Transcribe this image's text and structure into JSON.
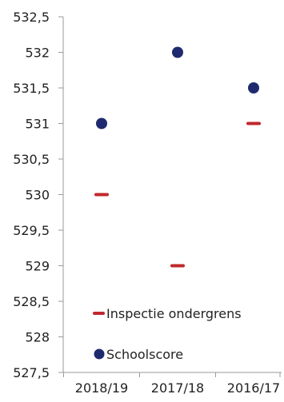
{
  "chart_data": {
    "type": "scatter",
    "title": "",
    "xlabel": "",
    "ylabel": "",
    "categories": [
      "2018/19",
      "2017/18",
      "2016/17"
    ],
    "y_tick_labels": [
      "532,5",
      "532",
      "531,5",
      "531",
      "530,5",
      "530",
      "529,5",
      "529",
      "528,5",
      "528",
      "527,5"
    ],
    "y_ticks": [
      532.5,
      532,
      531.5,
      531,
      530.5,
      530,
      529.5,
      529,
      528.5,
      528,
      527.5
    ],
    "ylim": [
      527.5,
      532.5
    ],
    "grid": false,
    "legend_position": "bottom-left",
    "series": [
      {
        "name": "Inspectie ondergrens",
        "marker": "dash",
        "color": "#C0282D",
        "values": [
          530,
          529,
          531
        ]
      },
      {
        "name": "Schoolscore",
        "marker": "circle",
        "color": "#1F2A6E",
        "values": [
          531,
          532,
          531.5
        ]
      }
    ]
  },
  "colors": {
    "axis": "#9A9A9A",
    "text": "#222222"
  }
}
